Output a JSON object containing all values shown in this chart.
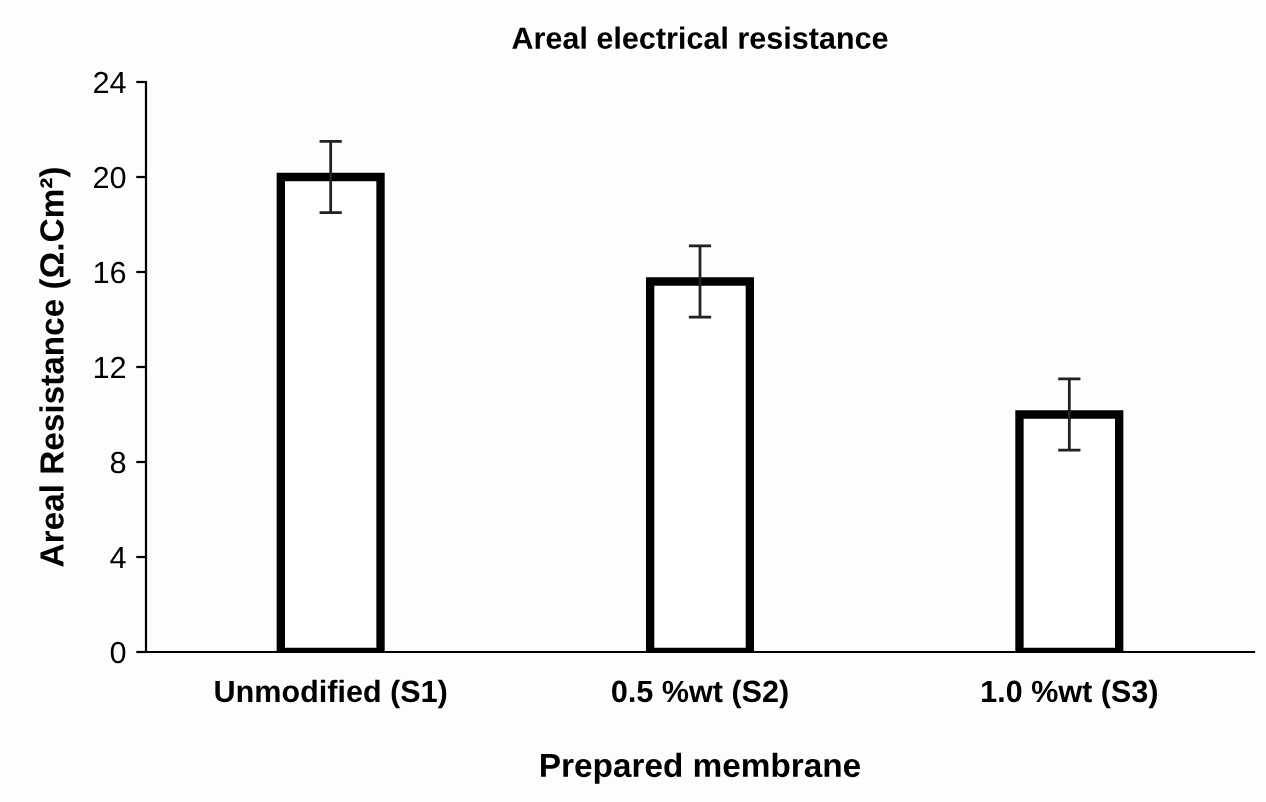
{
  "chart_data": {
    "type": "bar",
    "title": "Areal electrical resistance",
    "xlabel": "Prepared membrane",
    "ylabel": "Areal Resistance (Ω.Cm²)",
    "categories": [
      "Unmodified (S1)",
      "0.5 %wt (S2)",
      "1.0 %wt (S3)"
    ],
    "values": [
      20,
      15.6,
      10
    ],
    "errors": [
      1.5,
      1.5,
      1.5
    ],
    "color": "#ffffff",
    "ylim": [
      0,
      24
    ],
    "yticks": [
      0,
      4,
      8,
      12,
      16,
      20,
      24
    ],
    "grid": false,
    "legend": false
  }
}
